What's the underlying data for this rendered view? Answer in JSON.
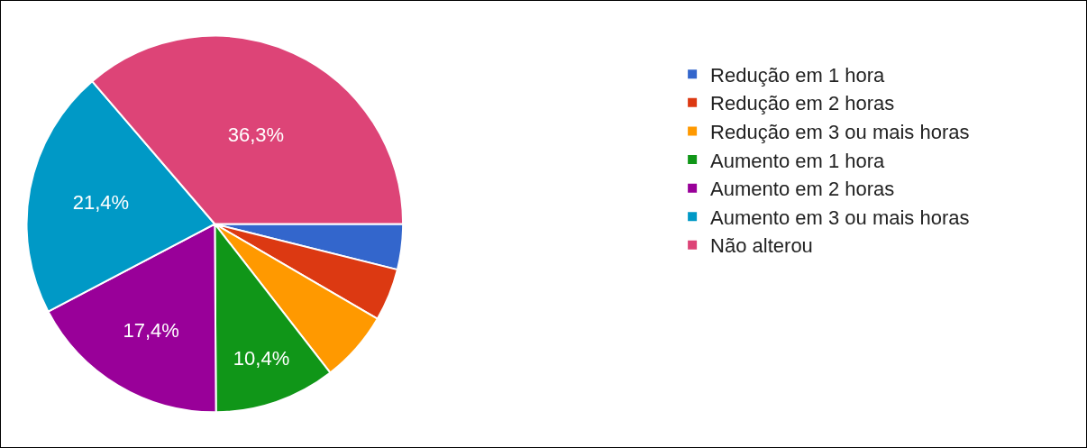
{
  "chart_data": {
    "type": "pie",
    "categories": [
      "Redução em 1 hora",
      "Redução em 2 horas",
      "Redução em 3 ou mais horas",
      "Aumento em 1 hora",
      "Aumento em 2 horas",
      "Aumento em 3 ou mais horas",
      "Não alterou"
    ],
    "values": [
      3.9,
      4.5,
      6.1,
      10.4,
      17.4,
      21.4,
      36.3
    ],
    "colors": [
      "#3366cc",
      "#dc3912",
      "#ff9900",
      "#109618",
      "#990099",
      "#0099c6",
      "#dd4477"
    ],
    "value_labels": [
      null,
      null,
      null,
      "10,4%",
      "17,4%",
      "21,4%",
      "36,3%"
    ],
    "legend": "top right"
  }
}
